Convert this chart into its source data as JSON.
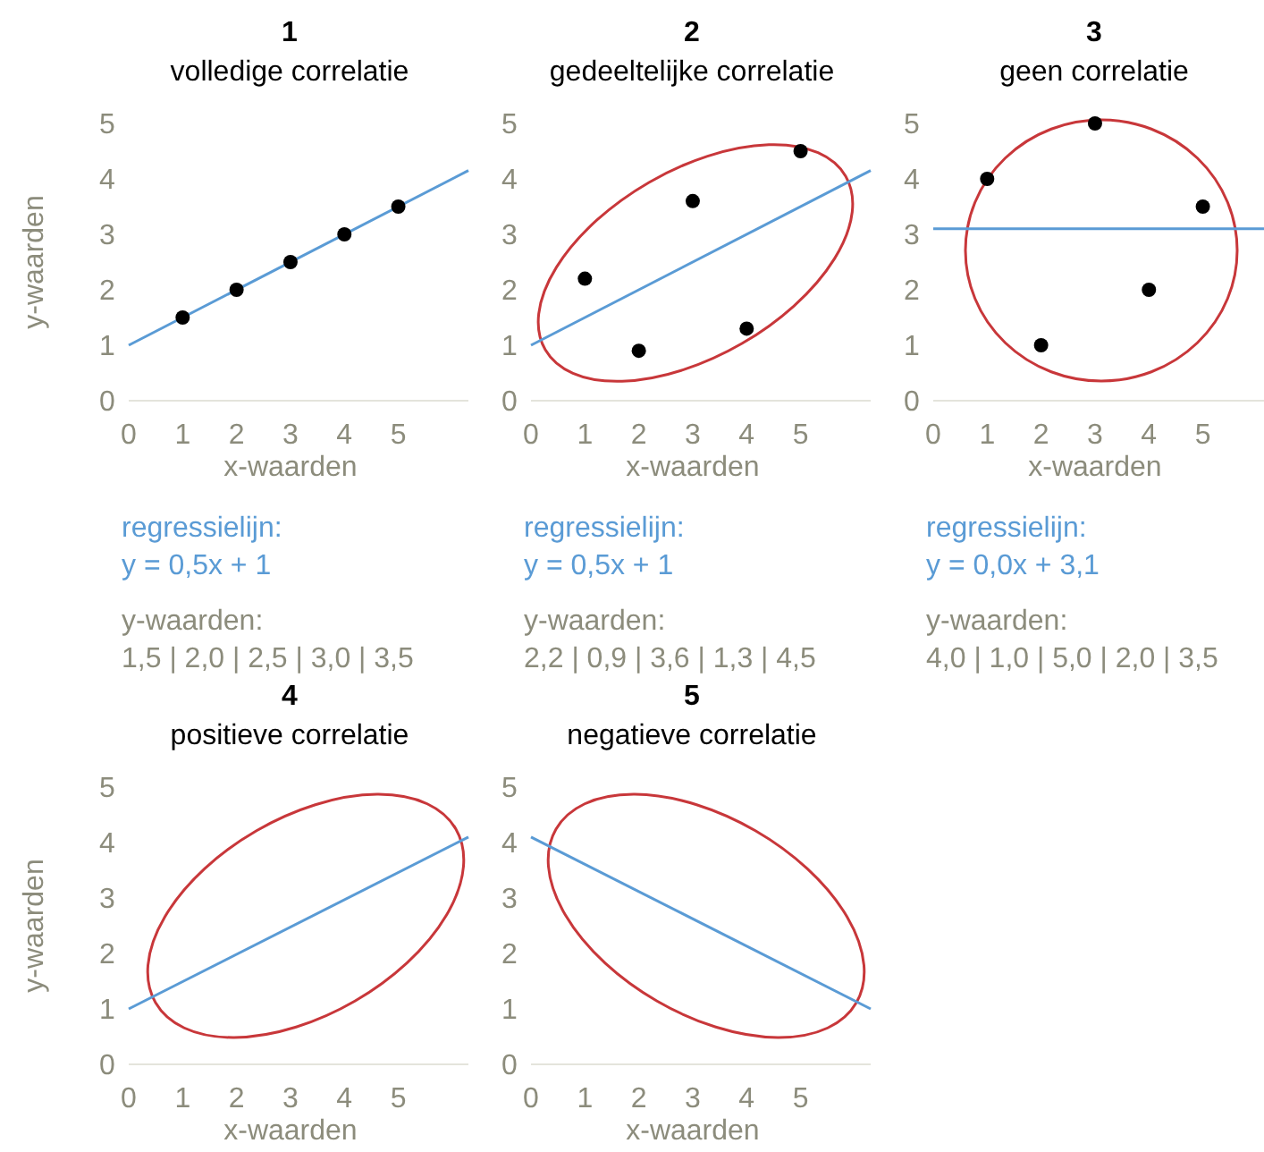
{
  "chart_data": [
    {
      "type": "scatter",
      "title": "1",
      "subtitle": "volledige correlatie",
      "xlabel": "x-waarden",
      "ylabel": "y-waarden",
      "xlim": [
        0,
        6.3
      ],
      "ylim": [
        0,
        5
      ],
      "xticks": [
        0,
        1,
        2,
        3,
        4,
        5
      ],
      "yticks": [
        0,
        1,
        2,
        3,
        4,
        5
      ],
      "grid": false,
      "series": [
        {
          "type": "line",
          "color": "#5a9bd5",
          "x": [
            0,
            6.3
          ],
          "values": [
            1,
            4.15
          ]
        },
        {
          "color": "#000000",
          "x": [
            1,
            2,
            3,
            4,
            5
          ],
          "values": [
            1.5,
            2.0,
            2.5,
            3.0,
            3.5
          ],
          "marker": "circle"
        }
      ],
      "annotations": [
        "regressielijn:",
        "y = 0,5x + 1",
        "y-waarden:",
        "1,5 | 2,0 | 2,5 | 3,0 | 3,5"
      ]
    },
    {
      "type": "scatter",
      "title": "2",
      "subtitle": "gedeeltelijke correlatie",
      "xlabel": "x-waarden",
      "xlim": [
        0,
        6.3
      ],
      "ylim": [
        0,
        5
      ],
      "xticks": [
        0,
        1,
        2,
        3,
        4,
        5
      ],
      "yticks": [
        0,
        1,
        2,
        3,
        4,
        5
      ],
      "grid": false,
      "series": [
        {
          "type": "line",
          "color": "#5a9bd5",
          "x": [
            0,
            6.3
          ],
          "values": [
            1,
            4.15
          ]
        },
        {
          "color": "#000000",
          "x": [
            1,
            2,
            3,
            4,
            5
          ],
          "values": [
            2.2,
            0.9,
            3.6,
            1.3,
            4.5
          ],
          "marker": "circle"
        }
      ],
      "annotations": [
        "regressielijn:",
        "y = 0,5x + 1",
        "y-waarden:",
        "2,2 | 0,9 | 3,6 | 1,3 | 4,5"
      ]
    },
    {
      "type": "scatter",
      "title": "3",
      "subtitle": "geen correlatie",
      "xlabel": "x-waarden",
      "xlim": [
        0,
        6.3
      ],
      "ylim": [
        0,
        5
      ],
      "xticks": [
        0,
        1,
        2,
        3,
        4,
        5
      ],
      "yticks": [
        0,
        1,
        2,
        3,
        4,
        5
      ],
      "grid": false,
      "series": [
        {
          "type": "line",
          "color": "#5a9bd5",
          "x": [
            0,
            6.3
          ],
          "values": [
            3.1,
            3.1
          ]
        },
        {
          "color": "#000000",
          "x": [
            1,
            2,
            3,
            4,
            5
          ],
          "values": [
            4.0,
            1.0,
            5.0,
            2.0,
            3.5
          ],
          "marker": "circle"
        }
      ],
      "annotations": [
        "regressielijn:",
        "y = 0,0x + 3,1",
        "y-waarden:",
        "4,0 | 1,0 | 5,0 | 2,0 | 3,5"
      ]
    },
    {
      "type": "line",
      "title": "4",
      "subtitle": "positieve correlatie",
      "xlabel": "x-waarden",
      "ylabel": "y-waarden",
      "xlim": [
        0,
        6.3
      ],
      "ylim": [
        0,
        5
      ],
      "xticks": [
        0,
        1,
        2,
        3,
        4,
        5
      ],
      "yticks": [
        0,
        1,
        2,
        3,
        4,
        5
      ],
      "grid": false,
      "series": [
        {
          "color": "#5a9bd5",
          "x": [
            0,
            6.3
          ],
          "values": [
            1,
            4.1
          ]
        }
      ]
    },
    {
      "type": "line",
      "title": "5",
      "subtitle": "negatieve correlatie",
      "xlabel": "x-waarden",
      "xlim": [
        0,
        6.3
      ],
      "ylim": [
        0,
        5
      ],
      "xticks": [
        0,
        1,
        2,
        3,
        4,
        5
      ],
      "yticks": [
        0,
        1,
        2,
        3,
        4,
        5
      ],
      "grid": false,
      "series": [
        {
          "color": "#5a9bd5",
          "x": [
            0,
            6.3
          ],
          "values": [
            4.1,
            1
          ]
        }
      ]
    }
  ]
}
